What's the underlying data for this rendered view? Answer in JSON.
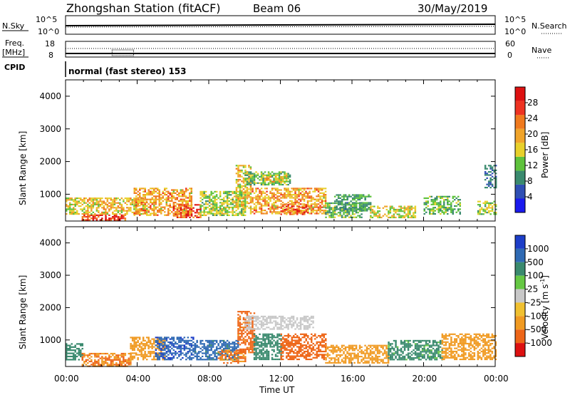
{
  "header": {
    "station": "Zhongshan Station (fitACF)",
    "beam": "Beam 06",
    "date": "30/May/2019"
  },
  "noise_panel": {
    "left_label": "N.Sky",
    "left_ticks": [
      "10^5",
      "10^0"
    ],
    "right_ticks": [
      "10^5",
      "10^0"
    ],
    "right_label": "N.Search"
  },
  "freq_panel": {
    "left_label_1": "Freq.",
    "left_label_2": "[MHz]",
    "left_ticks": [
      "18",
      "8"
    ],
    "right_ticks": [
      "60",
      "0"
    ],
    "right_label": "Nave"
  },
  "cpid": {
    "label": "CPID",
    "mode": "normal (fast stereo) 153"
  },
  "time_axis": {
    "label": "Time UT",
    "ticks": [
      "00:00",
      "04:00",
      "08:00",
      "12:00",
      "16:00",
      "20:00",
      "00:00"
    ]
  },
  "colors": {
    "power": [
      "#1a1aee",
      "#2f4fb4",
      "#3a8a6e",
      "#5fc23c",
      "#e8d02a",
      "#f0a42a",
      "#f07a1e",
      "#ee3322",
      "#dd1111"
    ],
    "velocity": [
      "#1d3ec8",
      "#2f6ab4",
      "#3a8a6e",
      "#66c844",
      "#c8c8c8",
      "#f0c030",
      "#f09a22",
      "#ee6618",
      "#dd1111"
    ]
  },
  "chart_data": [
    {
      "type": "heatmap",
      "panel": "power",
      "xlabel": "",
      "ylabel": "Slant Range [km]",
      "x_range_hours": [
        0,
        24
      ],
      "y_ticks": [
        "1000",
        "2000",
        "3000",
        "4000"
      ],
      "y_range": [
        180,
        4500
      ],
      "colorbar": {
        "label": "Power [dB]",
        "ticks": [
          "4",
          "8",
          "12",
          "16",
          "20",
          "24",
          "28"
        ],
        "range": [
          0,
          32
        ]
      },
      "regions": [
        {
          "t0": 0.0,
          "t1": 0.9,
          "r0": 380,
          "r1": 900,
          "value": 16
        },
        {
          "t0": 0.9,
          "t1": 3.3,
          "r0": 200,
          "r1": 380,
          "value": 26
        },
        {
          "t0": 2.2,
          "t1": 3.0,
          "r0": 200,
          "r1": 330,
          "value": 30
        },
        {
          "t0": 1.0,
          "t1": 4.5,
          "r0": 380,
          "r1": 900,
          "value": 18
        },
        {
          "t0": 3.8,
          "t1": 7.0,
          "r0": 380,
          "r1": 1200,
          "value": 20
        },
        {
          "t0": 6.0,
          "t1": 7.5,
          "r0": 300,
          "r1": 700,
          "value": 26
        },
        {
          "t0": 7.5,
          "t1": 10.0,
          "r0": 380,
          "r1": 1100,
          "value": 14
        },
        {
          "t0": 9.5,
          "t1": 10.3,
          "r0": 600,
          "r1": 1900,
          "value": 18
        },
        {
          "t0": 10.0,
          "t1": 12.5,
          "r0": 1300,
          "r1": 1700,
          "value": 12
        },
        {
          "t0": 11.0,
          "t1": 12.3,
          "r0": 1400,
          "r1": 1600,
          "value": 18
        },
        {
          "t0": 10.3,
          "t1": 14.5,
          "r0": 400,
          "r1": 1200,
          "value": 20
        },
        {
          "t0": 12.0,
          "t1": 13.5,
          "r0": 380,
          "r1": 700,
          "value": 24
        },
        {
          "t0": 14.5,
          "t1": 16.5,
          "r0": 280,
          "r1": 750,
          "value": 12
        },
        {
          "t0": 15.0,
          "t1": 17.0,
          "r0": 500,
          "r1": 1000,
          "value": 10
        },
        {
          "t0": 17.0,
          "t1": 19.5,
          "r0": 300,
          "r1": 650,
          "value": 16
        },
        {
          "t0": 20.0,
          "t1": 22.0,
          "r0": 380,
          "r1": 950,
          "value": 12
        },
        {
          "t0": 23.0,
          "t1": 24.0,
          "r0": 380,
          "r1": 800,
          "value": 14
        },
        {
          "t0": 23.4,
          "t1": 24.0,
          "r0": 1200,
          "r1": 1900,
          "value": 8
        }
      ]
    },
    {
      "type": "heatmap",
      "panel": "velocity",
      "xlabel": "Time UT",
      "ylabel": "Slant Range [km]",
      "x_range_hours": [
        0,
        24
      ],
      "y_ticks": [
        "1000",
        "2000",
        "3000",
        "4000"
      ],
      "y_range": [
        180,
        4500
      ],
      "colorbar": {
        "label": "Velocity [m s",
        "label_sup": "-1",
        "label_end": "]",
        "ticks": [
          "1000",
          "500",
          "100",
          "25",
          "-25",
          "-100",
          "-500",
          "-1000"
        ]
      },
      "regions": [
        {
          "t0": 0.0,
          "t1": 0.9,
          "r0": 380,
          "r1": 900,
          "value": 100
        },
        {
          "t0": 0.9,
          "t1": 3.6,
          "r0": 200,
          "r1": 600,
          "value": -300
        },
        {
          "t0": 3.6,
          "t1": 5.5,
          "r0": 380,
          "r1": 1100,
          "value": -100
        },
        {
          "t0": 5.0,
          "t1": 7.2,
          "r0": 400,
          "r1": 1100,
          "value": 600
        },
        {
          "t0": 7.2,
          "t1": 9.6,
          "r0": 380,
          "r1": 1000,
          "value": 400
        },
        {
          "t0": 8.5,
          "t1": 10.0,
          "r0": 300,
          "r1": 700,
          "value": -300
        },
        {
          "t0": 9.6,
          "t1": 10.5,
          "r0": 600,
          "r1": 1900,
          "value": -400
        },
        {
          "t0": 10.0,
          "t1": 13.8,
          "r0": 1350,
          "r1": 1750,
          "value": 0
        },
        {
          "t0": 10.5,
          "t1": 12.0,
          "r0": 400,
          "r1": 1200,
          "value": 200
        },
        {
          "t0": 12.0,
          "t1": 14.5,
          "r0": 380,
          "r1": 1200,
          "value": -500
        },
        {
          "t0": 14.5,
          "t1": 18.0,
          "r0": 280,
          "r1": 850,
          "value": -200
        },
        {
          "t0": 18.0,
          "t1": 21.0,
          "r0": 380,
          "r1": 1000,
          "value": 80
        },
        {
          "t0": 21.0,
          "t1": 24.0,
          "r0": 380,
          "r1": 1200,
          "value": -150
        }
      ]
    }
  ]
}
